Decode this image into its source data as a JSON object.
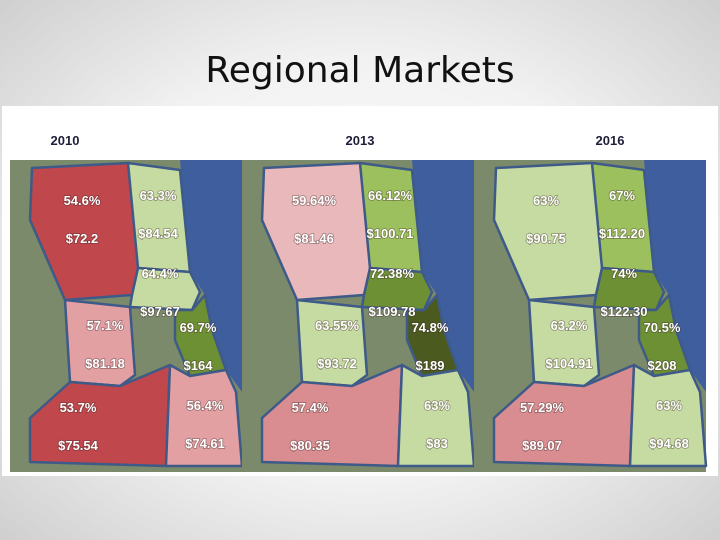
{
  "title": "Regional Markets",
  "panels": [
    {
      "year": "2010",
      "regions": [
        {
          "pct": "54.6%",
          "price": "$72.2",
          "color": "#c0474b"
        },
        {
          "pct": "63.3%",
          "price": "$84.54",
          "color": "#c6dba2"
        },
        {
          "pct": "64.4%",
          "price": "$97.67",
          "color": "#c6dba2"
        },
        {
          "pct": "57.1%",
          "price": "$81.18",
          "color": "#e2a0a3"
        },
        {
          "pct": "69.7%",
          "price": "$164",
          "color": "#6e9035"
        },
        {
          "pct": "53.7%",
          "price": "$75.54",
          "color": "#c0474b"
        },
        {
          "pct": "56.4%",
          "price": "$74.61",
          "color": "#e2a0a3"
        }
      ]
    },
    {
      "year": "2013",
      "regions": [
        {
          "pct": "59.64%",
          "price": "$81.46",
          "color": "#e9b8ba"
        },
        {
          "pct": "66.12%",
          "price": "$100.71",
          "color": "#9dc05e"
        },
        {
          "pct": "72.38%",
          "price": "$109.78",
          "color": "#6e9035"
        },
        {
          "pct": "63.55%",
          "price": "$93.72",
          "color": "#c6dba2"
        },
        {
          "pct": "74.8%",
          "price": "$189",
          "color": "#4b5a1f"
        },
        {
          "pct": "57.4%",
          "price": "$80.35",
          "color": "#d98d90"
        },
        {
          "pct": "63%",
          "price": "$83",
          "color": "#c6dba2"
        }
      ]
    },
    {
      "year": "2016",
      "regions": [
        {
          "pct": "63%",
          "price": "$90.75",
          "color": "#c6dba2"
        },
        {
          "pct": "67%",
          "price": "$112.20",
          "color": "#9dc05e"
        },
        {
          "pct": "74%",
          "price": "$122.30",
          "color": "#6e9035"
        },
        {
          "pct": "63.2%",
          "price": "$104.91",
          "color": "#c6dba2"
        },
        {
          "pct": "70.5%",
          "price": "$208",
          "color": "#6e9035"
        },
        {
          "pct": "57.29%",
          "price": "$89.07",
          "color": "#d98d90"
        },
        {
          "pct": "63%",
          "price": "$94.68",
          "color": "#c6dba2"
        }
      ]
    }
  ]
}
